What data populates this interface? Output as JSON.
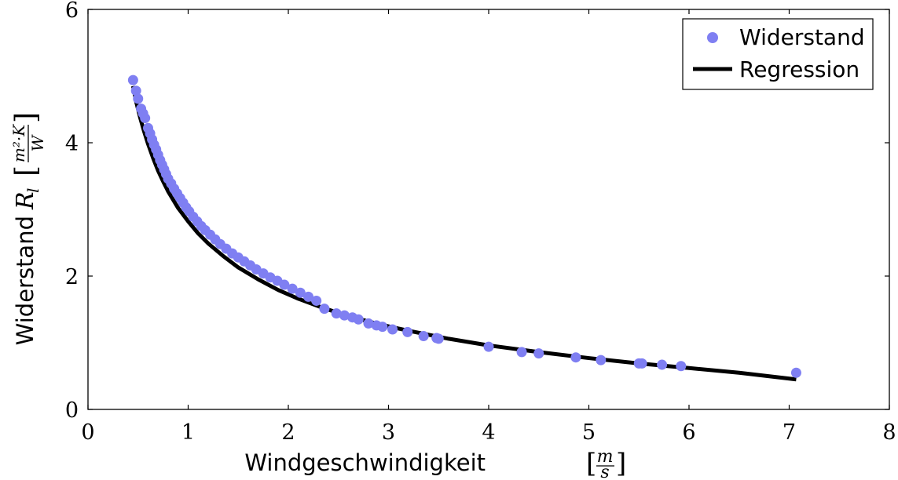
{
  "chart_data": {
    "type": "scatter",
    "xlabel": "Windgeschwindigkeit",
    "xlabel_unit": {
      "num": "m",
      "den": "s"
    },
    "ylabel": "Widerstand",
    "ylabel_symbol": "R",
    "ylabel_subscript": "l",
    "ylabel_unit": {
      "num": "m²·K",
      "den": "W"
    },
    "xlim": [
      0,
      8
    ],
    "ylim": [
      0,
      6
    ],
    "xticks": [
      "0",
      "1",
      "2",
      "3",
      "4",
      "5",
      "6",
      "7",
      "8"
    ],
    "yticks": [
      "0",
      "2",
      "4",
      "6"
    ],
    "grid": false,
    "legend_position": "top-right",
    "series": [
      {
        "name": "Widerstand",
        "kind": "scatter",
        "color": "#7f7ff2",
        "points": [
          [
            0.45,
            4.94
          ],
          [
            0.48,
            4.78
          ],
          [
            0.5,
            4.66
          ],
          [
            0.53,
            4.51
          ],
          [
            0.55,
            4.44
          ],
          [
            0.57,
            4.37
          ],
          [
            0.6,
            4.22
          ],
          [
            0.62,
            4.14
          ],
          [
            0.64,
            4.05
          ],
          [
            0.66,
            3.97
          ],
          [
            0.68,
            3.9
          ],
          [
            0.7,
            3.82
          ],
          [
            0.72,
            3.74
          ],
          [
            0.74,
            3.67
          ],
          [
            0.76,
            3.6
          ],
          [
            0.78,
            3.53
          ],
          [
            0.8,
            3.46
          ],
          [
            0.83,
            3.39
          ],
          [
            0.86,
            3.31
          ],
          [
            0.89,
            3.24
          ],
          [
            0.92,
            3.17
          ],
          [
            0.95,
            3.1
          ],
          [
            0.98,
            3.03
          ],
          [
            1.01,
            2.97
          ],
          [
            1.05,
            2.89
          ],
          [
            1.09,
            2.82
          ],
          [
            1.13,
            2.75
          ],
          [
            1.17,
            2.69
          ],
          [
            1.22,
            2.62
          ],
          [
            1.27,
            2.55
          ],
          [
            1.32,
            2.48
          ],
          [
            1.38,
            2.41
          ],
          [
            1.44,
            2.34
          ],
          [
            1.5,
            2.28
          ],
          [
            1.56,
            2.22
          ],
          [
            1.62,
            2.16
          ],
          [
            1.68,
            2.1
          ],
          [
            1.75,
            2.04
          ],
          [
            1.82,
            1.98
          ],
          [
            1.89,
            1.93
          ],
          [
            1.96,
            1.87
          ],
          [
            2.04,
            1.81
          ],
          [
            2.12,
            1.75
          ],
          [
            2.2,
            1.69
          ],
          [
            2.28,
            1.63
          ],
          [
            2.36,
            1.51
          ],
          [
            2.48,
            1.44
          ],
          [
            2.56,
            1.41
          ],
          [
            2.64,
            1.38
          ],
          [
            2.7,
            1.35
          ],
          [
            2.8,
            1.29
          ],
          [
            2.88,
            1.26
          ],
          [
            2.94,
            1.24
          ],
          [
            3.04,
            1.2
          ],
          [
            3.19,
            1.16
          ],
          [
            3.35,
            1.1
          ],
          [
            3.48,
            1.07
          ],
          [
            3.5,
            1.06
          ],
          [
            4.0,
            0.94
          ],
          [
            4.33,
            0.86
          ],
          [
            4.5,
            0.84
          ],
          [
            4.87,
            0.78
          ],
          [
            5.12,
            0.74
          ],
          [
            5.5,
            0.69
          ],
          [
            5.53,
            0.69
          ],
          [
            5.73,
            0.67
          ],
          [
            5.92,
            0.65
          ],
          [
            7.07,
            0.55
          ]
        ]
      },
      {
        "name": "Regression",
        "kind": "line",
        "color": "#000000",
        "x": [
          0.45,
          0.48,
          0.52,
          0.56,
          0.6,
          0.65,
          0.7,
          0.75,
          0.8,
          0.9,
          1.0,
          1.1,
          1.2,
          1.35,
          1.5,
          1.7,
          1.9,
          2.1,
          2.35,
          2.6,
          2.9,
          3.2,
          3.6,
          4.0,
          4.5,
          5.0,
          5.5,
          6.0,
          6.5,
          7.07
        ],
        "y": [
          4.85,
          4.62,
          4.38,
          4.17,
          3.98,
          3.77,
          3.58,
          3.42,
          3.27,
          3.02,
          2.82,
          2.64,
          2.49,
          2.3,
          2.13,
          1.95,
          1.79,
          1.66,
          1.52,
          1.4,
          1.28,
          1.18,
          1.06,
          0.96,
          0.86,
          0.77,
          0.69,
          0.62,
          0.55,
          0.45
        ]
      }
    ]
  }
}
